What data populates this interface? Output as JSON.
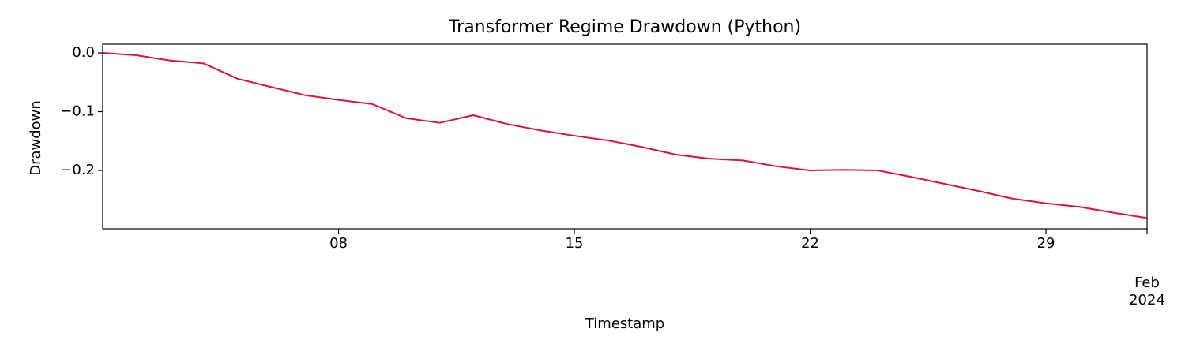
{
  "chart_data": {
    "type": "line",
    "title": "Transformer Regime Drawdown (Python)",
    "x_label": "Timestamp",
    "y_label": "Drawdown",
    "x": [
      "2024-01-01",
      "2024-01-02",
      "2024-01-03",
      "2024-01-04",
      "2024-01-05",
      "2024-01-06",
      "2024-01-07",
      "2024-01-08",
      "2024-01-09",
      "2024-01-10",
      "2024-01-11",
      "2024-01-12",
      "2024-01-13",
      "2024-01-14",
      "2024-01-15",
      "2024-01-16",
      "2024-01-17",
      "2024-01-18",
      "2024-01-19",
      "2024-01-20",
      "2024-01-21",
      "2024-01-22",
      "2024-01-23",
      "2024-01-24",
      "2024-01-25",
      "2024-01-26",
      "2024-01-27",
      "2024-01-28",
      "2024-01-29",
      "2024-01-30",
      "2024-01-31",
      "2024-02-01"
    ],
    "series": [
      {
        "color": "#dc143c",
        "values": [
          0.0,
          -0.004,
          -0.013,
          -0.018,
          -0.044,
          -0.058,
          -0.072,
          -0.08,
          -0.087,
          -0.111,
          -0.119,
          -0.106,
          -0.121,
          -0.132,
          -0.141,
          -0.149,
          -0.16,
          -0.173,
          -0.18,
          -0.183,
          -0.193,
          -0.2,
          -0.199,
          -0.2,
          -0.211,
          -0.223,
          -0.235,
          -0.248,
          -0.256,
          -0.262,
          -0.272,
          -0.281
        ]
      }
    ],
    "xlim": [
      "2024-01-01",
      "2024-02-01"
    ],
    "xticks": [
      {
        "value": "2024-01-08",
        "label": "08"
      },
      {
        "value": "2024-01-15",
        "label": "15"
      },
      {
        "value": "2024-01-22",
        "label": "22"
      },
      {
        "value": "2024-01-29",
        "label": "29"
      },
      {
        "value": "2024-02-01",
        "label": "Feb\n2024"
      }
    ],
    "ylim": [
      -0.2993,
      0.0148
    ],
    "yticks": [
      {
        "value": 0.0,
        "label": "0.0"
      },
      {
        "value": -0.1,
        "label": "−0.1"
      },
      {
        "value": -0.2,
        "label": "−0.2"
      }
    ],
    "grid": false
  }
}
